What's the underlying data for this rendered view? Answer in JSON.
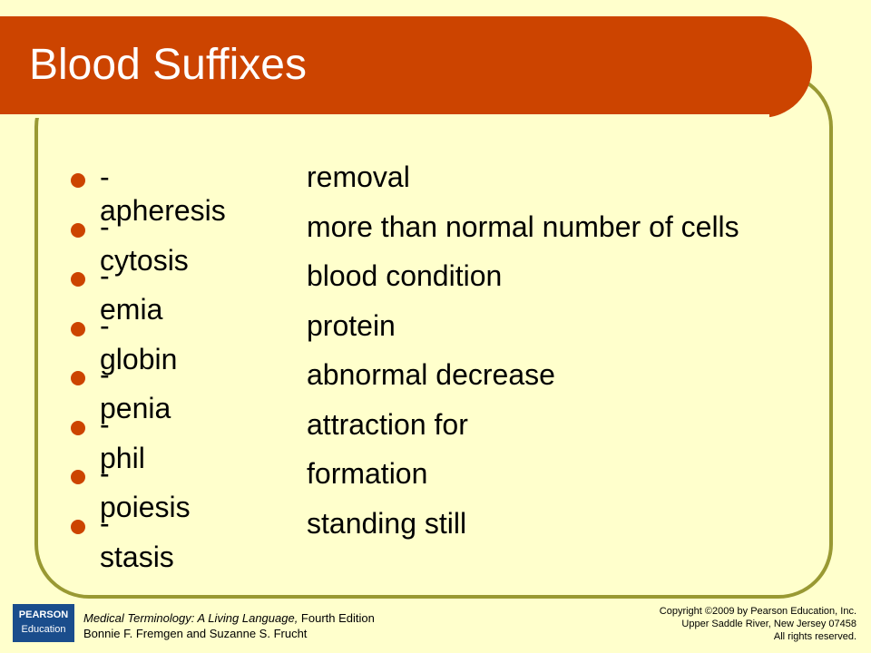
{
  "header": {
    "title": "Blood Suffixes"
  },
  "items": [
    {
      "term": "-apheresis",
      "meaning": "removal"
    },
    {
      "term": "-cytosis",
      "meaning": "more than normal number of cells"
    },
    {
      "term": "-emia",
      "meaning": "blood condition"
    },
    {
      "term": "-globin",
      "meaning": "protein"
    },
    {
      "term": "-penia",
      "meaning": "abnormal decrease"
    },
    {
      "term": "-phil",
      "meaning": "attraction for"
    },
    {
      "term": "-poiesis",
      "meaning": "formation"
    },
    {
      "term": "-stasis",
      "meaning": "standing still"
    }
  ],
  "footer": {
    "logo_top": "PEARSON",
    "logo_bottom": "Education",
    "book_title": "Medical Terminology: A Living Language,",
    "edition": " Fourth Edition",
    "authors": "Bonnie F. Fremgen and Suzanne S. Frucht",
    "copyright": [
      "Copyright ©2009 by Pearson Education, Inc.",
      "Upper Saddle River, New Jersey 07458",
      "All rights reserved."
    ]
  }
}
